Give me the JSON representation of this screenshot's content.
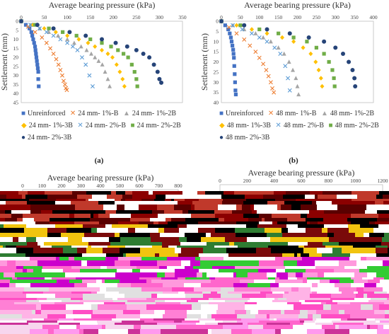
{
  "colors": {
    "unreinforced": "#4472C4",
    "s1B": "#ED7D31",
    "s1_2B": "#A5A5A5",
    "s1_3B": "#FFC000",
    "s2_2B": "#70AD47",
    "s3B": "#264478",
    "s1_2B_lighter": "#5B9BD5"
  },
  "chart_data": [
    {
      "type": "scatter",
      "caption": "(a)",
      "xlabel": "Average bearing pressure (kPa)",
      "ylabel": "Settlement (mm)",
      "xlim": [
        0,
        350
      ],
      "ylim": [
        0,
        45
      ],
      "xticks": [
        "0",
        "50",
        "100",
        "150",
        "200",
        "250",
        "300",
        "350"
      ],
      "yticks": [
        "0",
        "5",
        "10",
        "15",
        "20",
        "25",
        "30",
        "35",
        "40",
        "45"
      ],
      "series": [
        {
          "name": "Unreinforced",
          "marker": "square",
          "colorKey": "unreinforced",
          "x": [
            0,
            10,
            18,
            22,
            24,
            26,
            28,
            30,
            31,
            32,
            33,
            34,
            35,
            36,
            37,
            37,
            38
          ],
          "y": [
            0,
            2,
            4,
            6,
            8,
            10,
            12,
            14,
            16,
            18,
            20,
            22,
            24,
            26,
            28,
            32,
            36
          ]
        },
        {
          "name": "24 mm- 1%-B",
          "marker": "x",
          "colorKey": "s1B",
          "x": [
            0,
            15,
            30,
            45,
            55,
            63,
            70,
            76,
            81,
            85,
            89,
            92,
            95,
            97,
            99
          ],
          "y": [
            0,
            3,
            6,
            9,
            12,
            15,
            18,
            21,
            24,
            27,
            30,
            33,
            35,
            37,
            38
          ]
        },
        {
          "name": "24 mm- 1%-2B",
          "marker": "triangle",
          "colorKey": "s1_2B",
          "x": [
            0,
            20,
            40,
            60,
            80,
            100,
            115,
            130,
            142,
            152,
            160,
            168,
            176,
            182,
            188,
            192
          ],
          "y": [
            0,
            2,
            4,
            6,
            8,
            10,
            12,
            14,
            16,
            18,
            20,
            22,
            24,
            28,
            32,
            36
          ]
        },
        {
          "name": "24 mm- 1%-3B",
          "marker": "diamond",
          "colorKey": "s1_3B",
          "x": [
            0,
            25,
            50,
            75,
            100,
            125,
            145,
            160,
            175,
            188,
            198,
            207,
            214,
            220,
            224
          ],
          "y": [
            0,
            2,
            4,
            6,
            8,
            10,
            12,
            14,
            16,
            18,
            20,
            24,
            28,
            32,
            36
          ]
        },
        {
          "name": "24 mm- 2%-B",
          "marker": "x",
          "colorKey": "s1_2B_lighter",
          "x": [
            0,
            20,
            40,
            55,
            70,
            85,
            100,
            112,
            122,
            132,
            140,
            148,
            155
          ],
          "y": [
            0,
            2,
            4,
            6,
            8,
            10,
            12,
            14,
            16,
            20,
            24,
            30,
            36
          ]
        },
        {
          "name": "24 mm- 2%-2B",
          "marker": "square",
          "colorKey": "s2_2B",
          "x": [
            0,
            30,
            60,
            90,
            120,
            150,
            175,
            195,
            210,
            222,
            232,
            240,
            246,
            250,
            252
          ],
          "y": [
            0,
            2,
            4,
            6,
            8,
            10,
            12,
            14,
            16,
            18,
            20,
            24,
            28,
            32,
            36
          ]
        },
        {
          "name": "24 mm- 2%-3B",
          "marker": "circle",
          "colorKey": "s3B",
          "x": [
            0,
            35,
            70,
            105,
            140,
            175,
            205,
            230,
            250,
            265,
            278,
            288,
            296,
            300,
            304
          ],
          "y": [
            0,
            2,
            4,
            6,
            8,
            10,
            12,
            14,
            16,
            18,
            20,
            24,
            28,
            32,
            34
          ]
        }
      ]
    },
    {
      "type": "scatter",
      "caption": "(b)",
      "xlabel": "Average bearing pressure (kPa)",
      "ylabel": "Settlement (mm)",
      "xlim": [
        0,
        400
      ],
      "ylim": [
        0,
        40
      ],
      "xticks": [
        "0",
        "50",
        "100",
        "150",
        "200",
        "250",
        "300",
        "350",
        "400"
      ],
      "yticks": [
        "0",
        "5",
        "10",
        "15",
        "20",
        "25",
        "30",
        "35",
        "40"
      ],
      "series": [
        {
          "name": "Unreinforced",
          "marker": "square",
          "colorKey": "unreinforced",
          "x": [
            0,
            10,
            18,
            22,
            25,
            27,
            29,
            31,
            32,
            33,
            34,
            35,
            36,
            37,
            38
          ],
          "y": [
            0,
            2,
            4,
            6,
            8,
            10,
            12,
            14,
            16,
            18,
            22,
            26,
            30,
            34,
            36
          ]
        },
        {
          "name": "48 mm- 1%-B",
          "marker": "x",
          "colorKey": "s1B",
          "x": [
            0,
            20,
            40,
            60,
            75,
            90,
            100,
            110,
            118,
            124,
            130,
            134,
            138
          ],
          "y": [
            0,
            3,
            6,
            9,
            12,
            15,
            18,
            21,
            24,
            27,
            30,
            33,
            35
          ]
        },
        {
          "name": "48 mm- 1%-2B",
          "marker": "triangle",
          "colorKey": "s1_2B",
          "x": [
            0,
            30,
            60,
            90,
            110,
            130,
            150,
            165,
            178,
            188,
            196,
            200,
            203
          ],
          "y": [
            0,
            2,
            4,
            6,
            8,
            10,
            13,
            16,
            20,
            24,
            28,
            32,
            36
          ]
        },
        {
          "name": "48 mm- 1%-3B",
          "marker": "diamond",
          "colorKey": "s1_3B",
          "x": [
            0,
            40,
            80,
            120,
            160,
            190,
            215,
            235,
            248,
            256,
            262,
            265
          ],
          "y": [
            0,
            2,
            4,
            6,
            8,
            10,
            13,
            16,
            20,
            24,
            28,
            32
          ]
        },
        {
          "name": "48 mm- 2%-B",
          "marker": "x",
          "colorKey": "s1_2B_lighter",
          "x": [
            0,
            30,
            55,
            80,
            100,
            120,
            140,
            155,
            168,
            175,
            180
          ],
          "y": [
            0,
            2,
            4,
            6,
            8,
            10,
            13,
            16,
            22,
            28,
            34
          ]
        },
        {
          "name": "48 mm- 2%-2B",
          "marker": "square",
          "colorKey": "s2_2B",
          "x": [
            0,
            50,
            100,
            150,
            190,
            225,
            250,
            270,
            283,
            292,
            296,
            298
          ],
          "y": [
            0,
            2,
            4,
            6,
            8,
            10,
            13,
            16,
            20,
            24,
            28,
            32
          ]
        },
        {
          "name": "48 mm- 2%-3B",
          "marker": "circle",
          "colorKey": "s3B",
          "x": [
            0,
            60,
            120,
            180,
            230,
            270,
            300,
            320,
            335,
            345,
            350,
            352
          ],
          "y": [
            0,
            2,
            4,
            6,
            8,
            10,
            13,
            16,
            20,
            24,
            28,
            32
          ]
        }
      ]
    },
    {
      "type": "scatter",
      "caption": "",
      "xlabel": "Average bearing pressure (kPa)",
      "ylabel": "",
      "xlim": [
        0,
        800
      ],
      "ylim": [
        0,
        40
      ],
      "xticks": [
        "0",
        "100",
        "200",
        "300",
        "400",
        "500",
        "600",
        "700",
        "800"
      ],
      "yticks": [],
      "series": []
    },
    {
      "type": "scatter",
      "caption": "",
      "xlabel": "Average bearing pressure (kPa)",
      "ylabel": "",
      "xlim": [
        0,
        1200
      ],
      "ylim": [
        0,
        40
      ],
      "xticks": [
        "0",
        "200",
        "400",
        "600",
        "800",
        "1000",
        "1200"
      ],
      "yticks": [],
      "series": []
    }
  ],
  "legend_a": {
    "row1": [
      "Unreinforced",
      "24 mm- 1%-B",
      "24 mm- 1%-2B"
    ],
    "row2": [
      "24 mm- 1%-3B",
      "24 mm- 2%-B",
      "24 mm- 2%-2B"
    ],
    "row3": [
      "24 mm- 2%-3B"
    ]
  },
  "legend_b": {
    "row1": [
      "Unreinforced",
      "48 mm- 1%-B",
      "48 mm- 1%-2B"
    ],
    "row2": [
      "48 mm- 1%-3B",
      "48 mm- 2%-B",
      "48 mm- 2%-2B"
    ],
    "row3": [
      "48 mm- 2%-3B"
    ]
  }
}
